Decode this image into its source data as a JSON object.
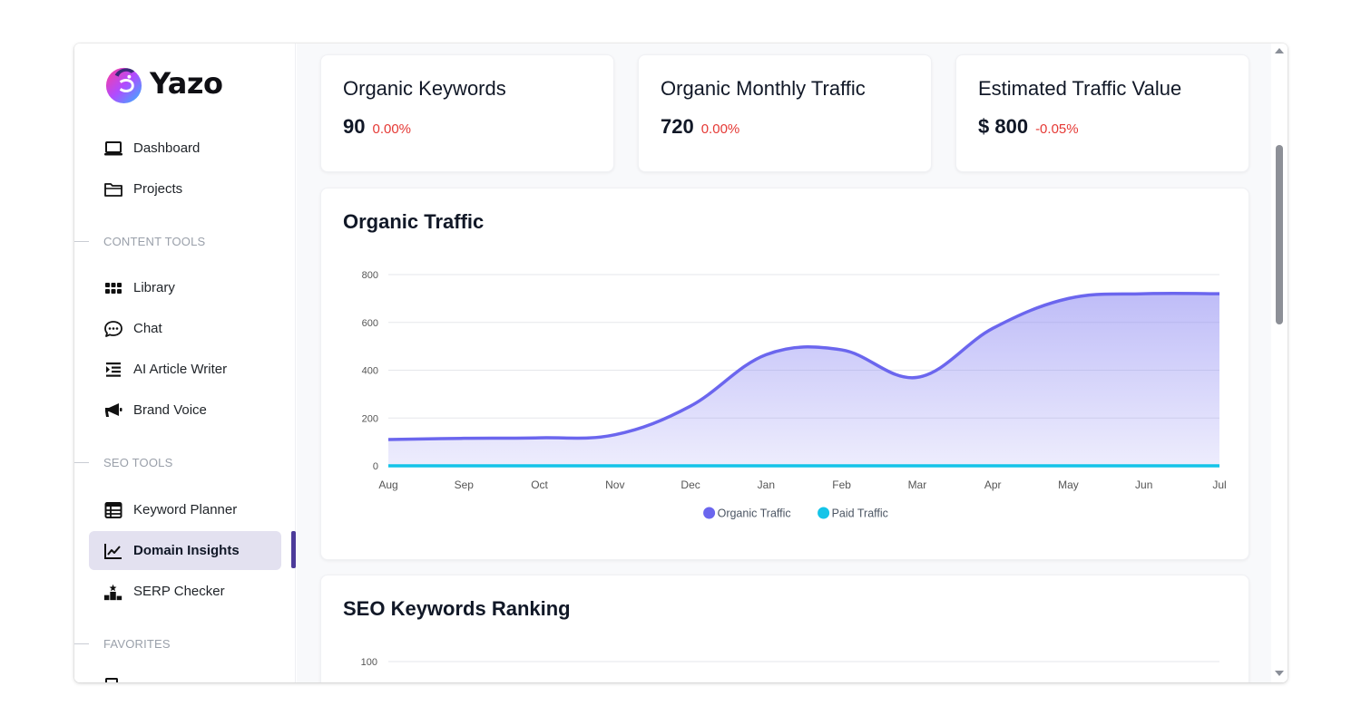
{
  "brand": {
    "name": "Yazo"
  },
  "nav": {
    "main": [
      {
        "label": "Dashboard",
        "icon": "laptop-icon"
      },
      {
        "label": "Projects",
        "icon": "folder-icon"
      }
    ],
    "content_tools_label": "CONTENT TOOLS",
    "content_tools": [
      {
        "label": "Library",
        "icon": "grid-icon"
      },
      {
        "label": "Chat",
        "icon": "chat-bubble-icon"
      },
      {
        "label": "AI Article Writer",
        "icon": "indent-list-icon"
      },
      {
        "label": "Brand Voice",
        "icon": "megaphone-icon"
      }
    ],
    "seo_tools_label": "SEO TOOLS",
    "seo_tools": [
      {
        "label": "Keyword Planner",
        "icon": "table-icon"
      },
      {
        "label": "Domain Insights",
        "icon": "line-chart-icon",
        "active": true
      },
      {
        "label": "SERP Checker",
        "icon": "podium-icon"
      }
    ],
    "favorites_label": "FAVORITES"
  },
  "stats": [
    {
      "title": "Organic Keywords",
      "value": "90",
      "change": "0.00%"
    },
    {
      "title": "Organic Monthly Traffic",
      "value": "720",
      "change": "0.00%"
    },
    {
      "title": "Estimated Traffic Value",
      "value": "$ 800",
      "change": "-0.05%"
    }
  ],
  "colors": {
    "organic": "#6b66ee",
    "paid": "#14c4e8",
    "negative": "#e53935",
    "active_bg": "#e3e1f0",
    "active_bar": "#4c3b9a"
  },
  "traffic_card": {
    "title": "Organic Traffic"
  },
  "chart_data": {
    "type": "area",
    "categories": [
      "Aug",
      "Sep",
      "Oct",
      "Nov",
      "Dec",
      "Jan",
      "Feb",
      "Mar",
      "Apr",
      "May",
      "Jun",
      "Jul"
    ],
    "series": [
      {
        "name": "Organic Traffic",
        "values": [
          110,
          115,
          117,
          130,
          250,
          465,
          485,
          370,
          575,
          700,
          720,
          720
        ]
      },
      {
        "name": "Paid Traffic",
        "values": [
          0,
          0,
          0,
          0,
          0,
          0,
          0,
          0,
          0,
          0,
          0,
          0
        ]
      }
    ],
    "yticks": [
      "0",
      "200",
      "400",
      "600",
      "800"
    ],
    "ylim": [
      0,
      800
    ],
    "grid": true,
    "legend": "bottom-center"
  },
  "ranking_card": {
    "title": "SEO Keywords Ranking",
    "top_tick": "100"
  }
}
